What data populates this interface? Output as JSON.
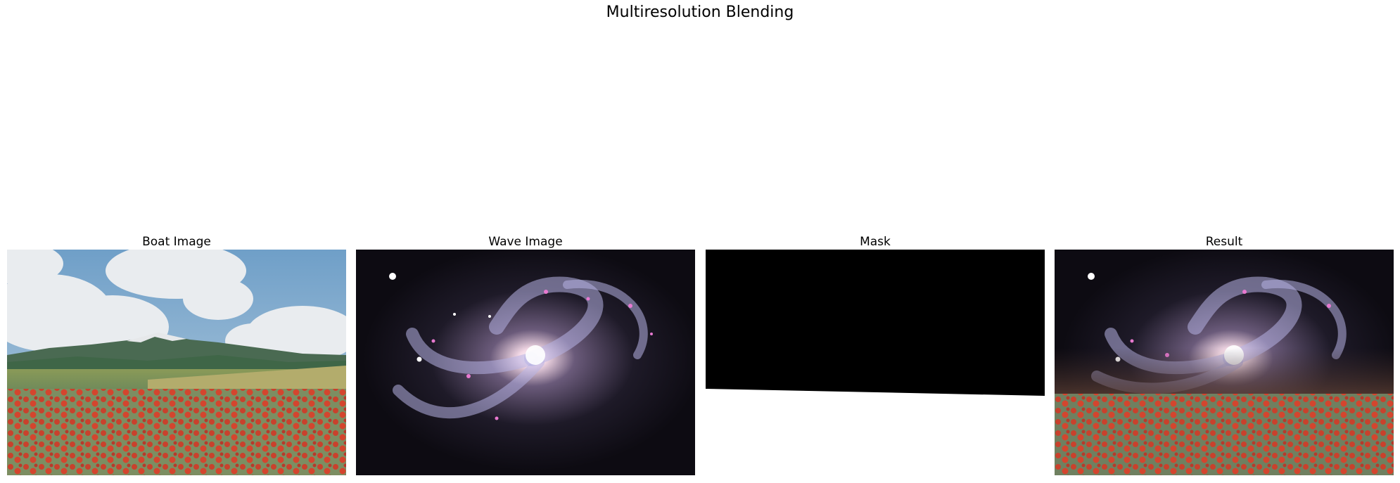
{
  "figure": {
    "title": "Multiresolution Blending",
    "panels": [
      {
        "title": "Boat Image"
      },
      {
        "title": "Wave Image"
      },
      {
        "title": "Mask"
      },
      {
        "title": "Result"
      }
    ]
  }
}
